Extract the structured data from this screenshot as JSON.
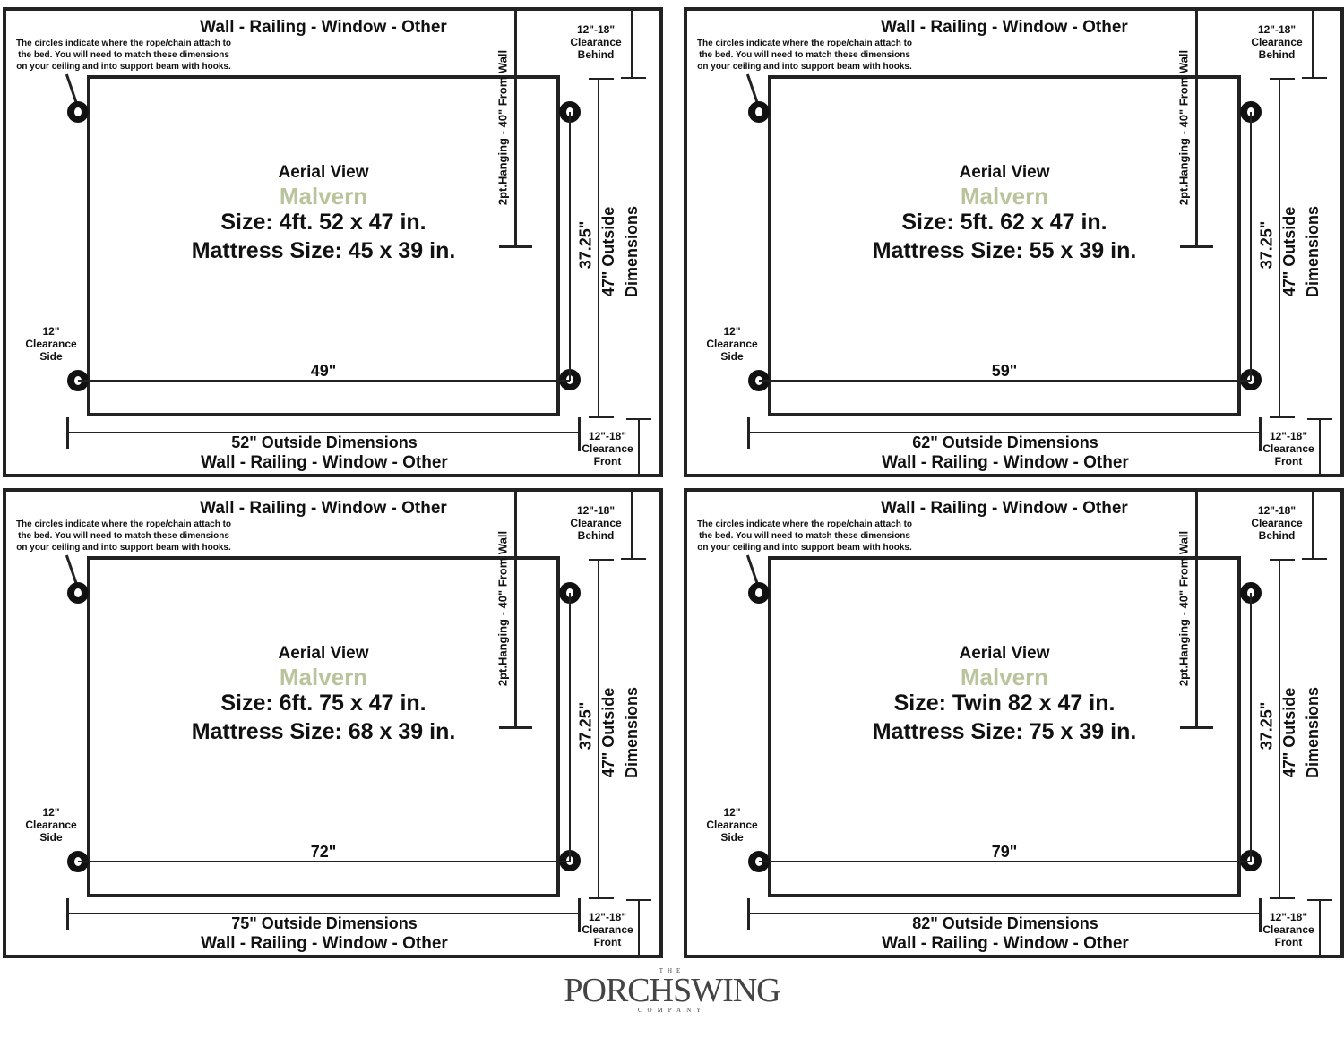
{
  "labels": {
    "top": "Wall - Railing - Window - Other",
    "note": "The circles indicate where the rope/chain attach to the bed. You will need to match these dimensions on your ceiling and into support beam with hooks.",
    "behind": [
      "12\"-18\"",
      "Clearance",
      "Behind"
    ],
    "front": [
      "12\"-18\"",
      "Clearance",
      "Front"
    ],
    "side": [
      "12\"",
      "Clearance",
      "Side"
    ],
    "hanging": "2pt.Hanging - 40\" From Wall",
    "depth": "37.25\"",
    "outside_v": [
      "47\" Outside",
      "Dimensions"
    ],
    "aerial": "Aerial View",
    "name": "Malvern",
    "bottom": "Wall - Railing - Window - Other"
  },
  "name_color": "#b9c49c",
  "panels": [
    {
      "size": "Size: 4ft. 52 x 47 in.",
      "mattress": "Mattress Size: 45 x 39 in.",
      "hook_span": "49\"",
      "outside": "52\" Outside Dimensions"
    },
    {
      "size": "Size: 5ft. 62 x 47 in.",
      "mattress": "Mattress Size: 55 x 39 in.",
      "hook_span": "59\"",
      "outside": "62\" Outside Dimensions"
    },
    {
      "size": "Size: 6ft. 75 x 47 in.",
      "mattress": "Mattress Size: 68 x 39 in.",
      "hook_span": "72\"",
      "outside": "75\" Outside Dimensions"
    },
    {
      "size": "Size: Twin 82 x 47 in.",
      "mattress": "Mattress Size: 75 x 39 in.",
      "hook_span": "79\"",
      "outside": "82\" Outside Dimensions"
    }
  ],
  "logo": {
    "the": "THE",
    "main": "PORCHSWING",
    "sub": "COMPANY"
  }
}
